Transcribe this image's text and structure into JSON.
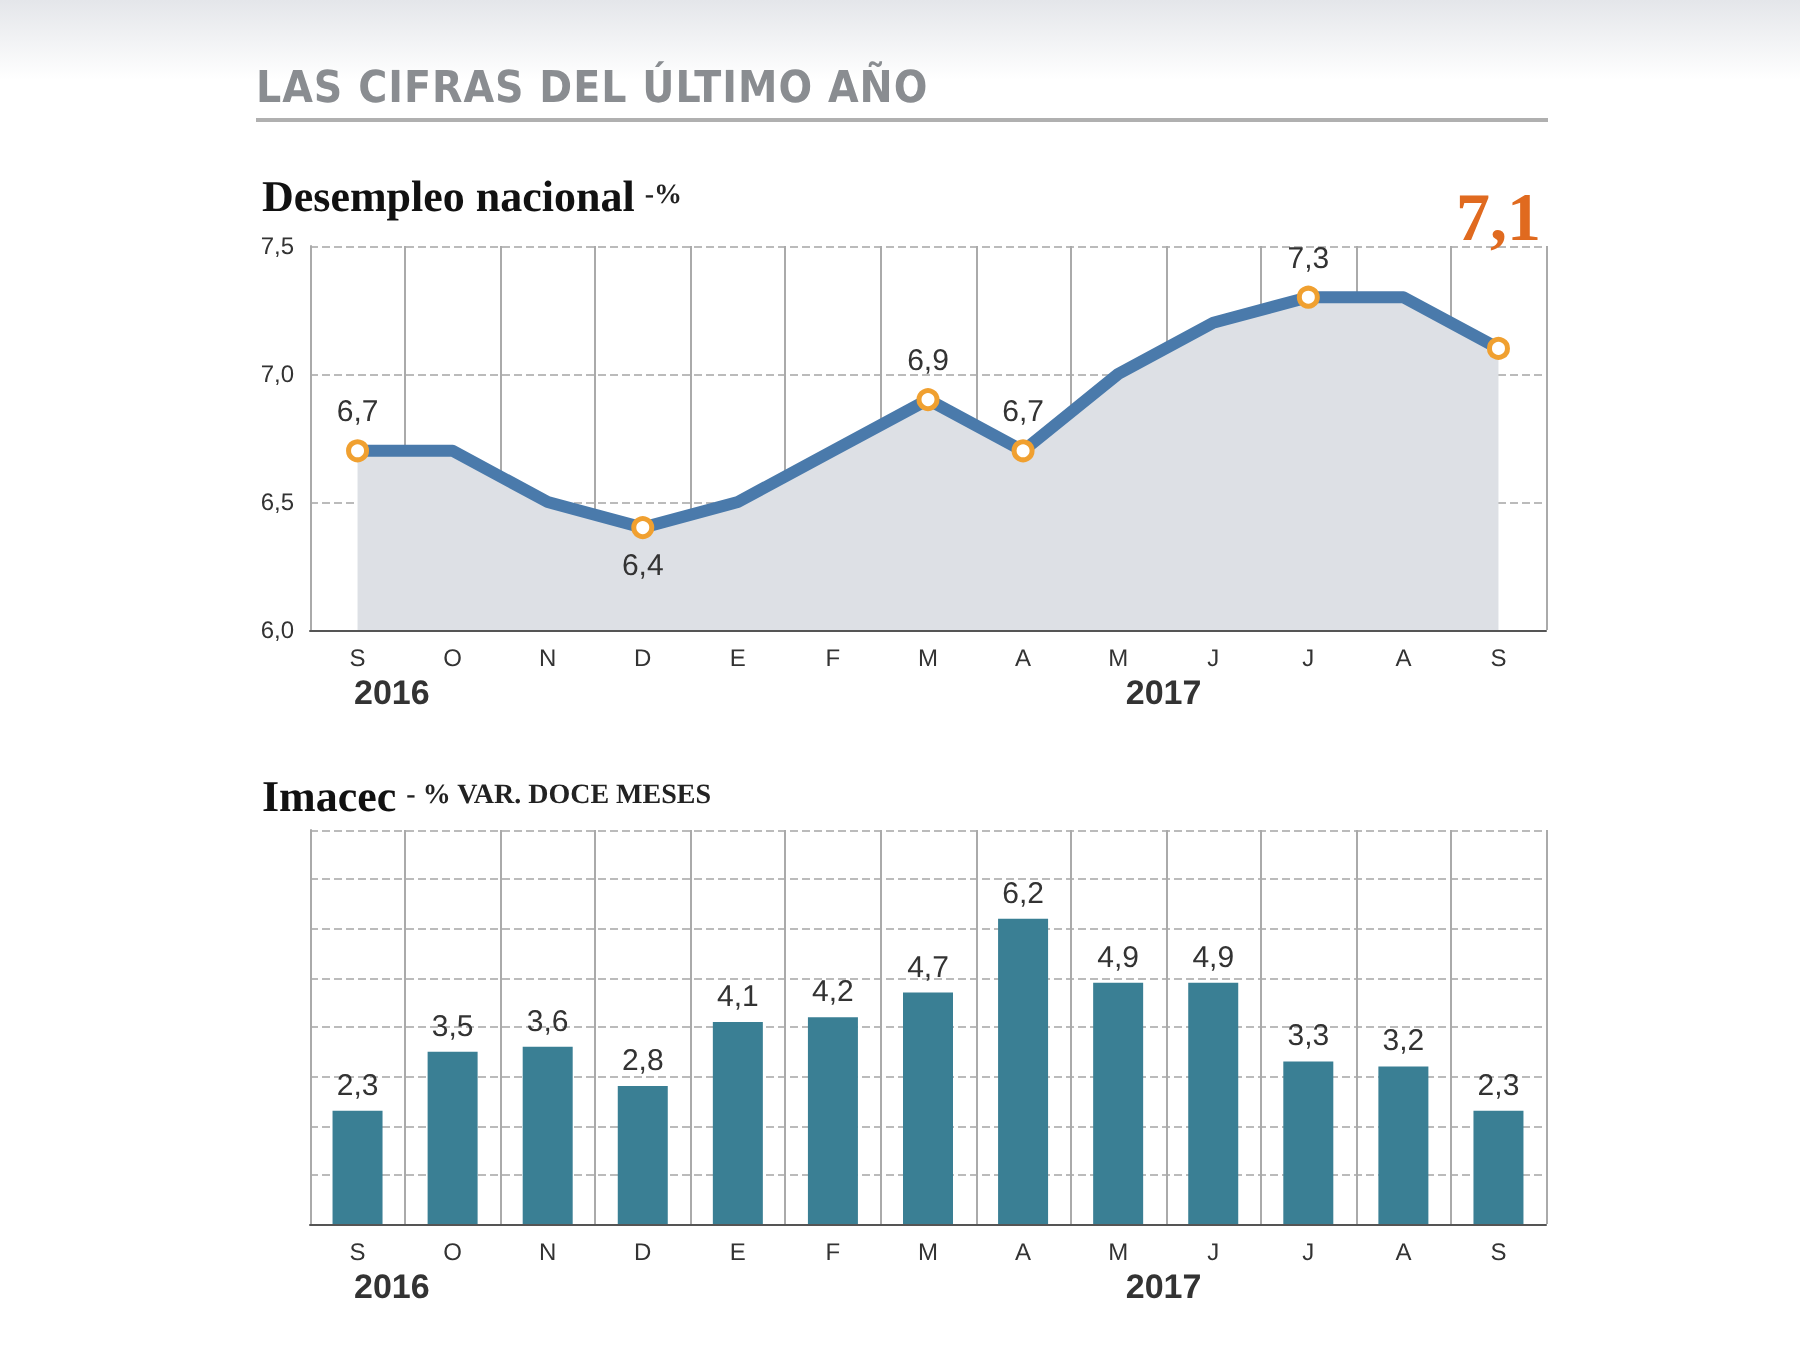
{
  "chart_data": [
    {
      "type": "area",
      "title": "Desempleo nacional",
      "subtitle": "-%",
      "annotations": [
        "LAS CIFRAS DEL ÚLTIMO AÑO",
        "2016",
        "2017"
      ],
      "categories": [
        "S",
        "O",
        "N",
        "D",
        "E",
        "F",
        "M",
        "A",
        "M",
        "J",
        "J",
        "A",
        "S"
      ],
      "series": [
        {
          "color": "#4a7aab",
          "values": [
            6.7,
            6.7,
            6.5,
            6.4,
            6.5,
            6.7,
            6.9,
            6.7,
            7.0,
            7.2,
            7.3,
            7.3,
            7.1
          ],
          "value_labels": [
            "6,7",
            null,
            null,
            "6,4",
            null,
            null,
            "6,9",
            "6,7",
            null,
            null,
            "7,3",
            null,
            "7,1"
          ]
        }
      ],
      "ylim": [
        6.0,
        7.5
      ],
      "yticks": [
        {
          "value": 6.0,
          "label": "6,0"
        },
        {
          "value": 6.5,
          "label": "6,5"
        },
        {
          "value": 7.0,
          "label": "7,0"
        },
        {
          "value": 7.5,
          "label": "7,5"
        }
      ],
      "grid": true
    },
    {
      "type": "bar",
      "title": "Imacec",
      "subtitle": "- % VAR. DOCE MESES",
      "annotations": [
        "2016",
        "2017"
      ],
      "categories": [
        "S",
        "O",
        "N",
        "D",
        "E",
        "F",
        "M",
        "A",
        "M",
        "J",
        "J",
        "A",
        "S"
      ],
      "series": [
        {
          "color": "#3a7f94",
          "values": [
            2.3,
            3.5,
            3.6,
            2.8,
            4.1,
            4.2,
            4.7,
            6.2,
            4.9,
            4.9,
            3.3,
            3.2,
            2.3
          ],
          "value_labels": [
            "2,3",
            "3,5",
            "3,6",
            "2,8",
            "4,1",
            "4,2",
            "4,7",
            "6,2",
            "4,9",
            "4,9",
            "3,3",
            "3,2",
            "2,3"
          ]
        }
      ],
      "ylim": [
        0,
        8
      ],
      "yticks": [
        {
          "value": 0,
          "label": null
        },
        {
          "value": 1,
          "label": null
        },
        {
          "value": 2,
          "label": null
        },
        {
          "value": 3,
          "label": null
        },
        {
          "value": 4,
          "label": null
        },
        {
          "value": 5,
          "label": null
        },
        {
          "value": 6,
          "label": null
        },
        {
          "value": 7,
          "label": null
        },
        {
          "value": 8,
          "label": null
        }
      ],
      "tick_labels": "x",
      "grid": true
    }
  ]
}
